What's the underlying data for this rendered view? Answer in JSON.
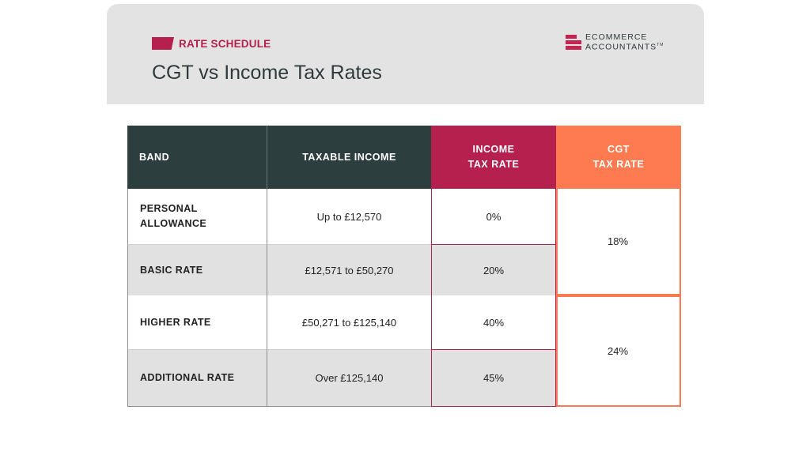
{
  "header": {
    "tag": "RATE SCHEDULE",
    "title": "CGT vs Income Tax Rates",
    "logo_line1": "ECOMMERCE",
    "logo_line2": "ACCOUNTANTS",
    "logo_mark": "TM"
  },
  "colors": {
    "dark_teal": "#2d3e3f",
    "crimson": "#b5204f",
    "orange": "#fe7b52",
    "grey_row": "#e1e1e1"
  },
  "table": {
    "headers": {
      "band": "BAND",
      "taxable_income": "TAXABLE INCOME",
      "income_tax_rate": "INCOME\nTAX RATE",
      "cgt_tax_rate": "CGT\nTAX RATE"
    },
    "rows": [
      {
        "band": "PERSONAL\nALLOWANCE",
        "income": "Up to £12,570",
        "rate": "0%"
      },
      {
        "band": "BASIC RATE",
        "income": "£12,571 to £50,270",
        "rate": "20%"
      },
      {
        "band": "HIGHER RATE",
        "income": "£50,271 to £125,140",
        "rate": "40%"
      },
      {
        "band": "ADDITIONAL RATE",
        "income": "Over £125,140",
        "rate": "45%"
      }
    ],
    "cgt_groups": [
      {
        "value": "18%"
      },
      {
        "value": "24%"
      }
    ]
  }
}
